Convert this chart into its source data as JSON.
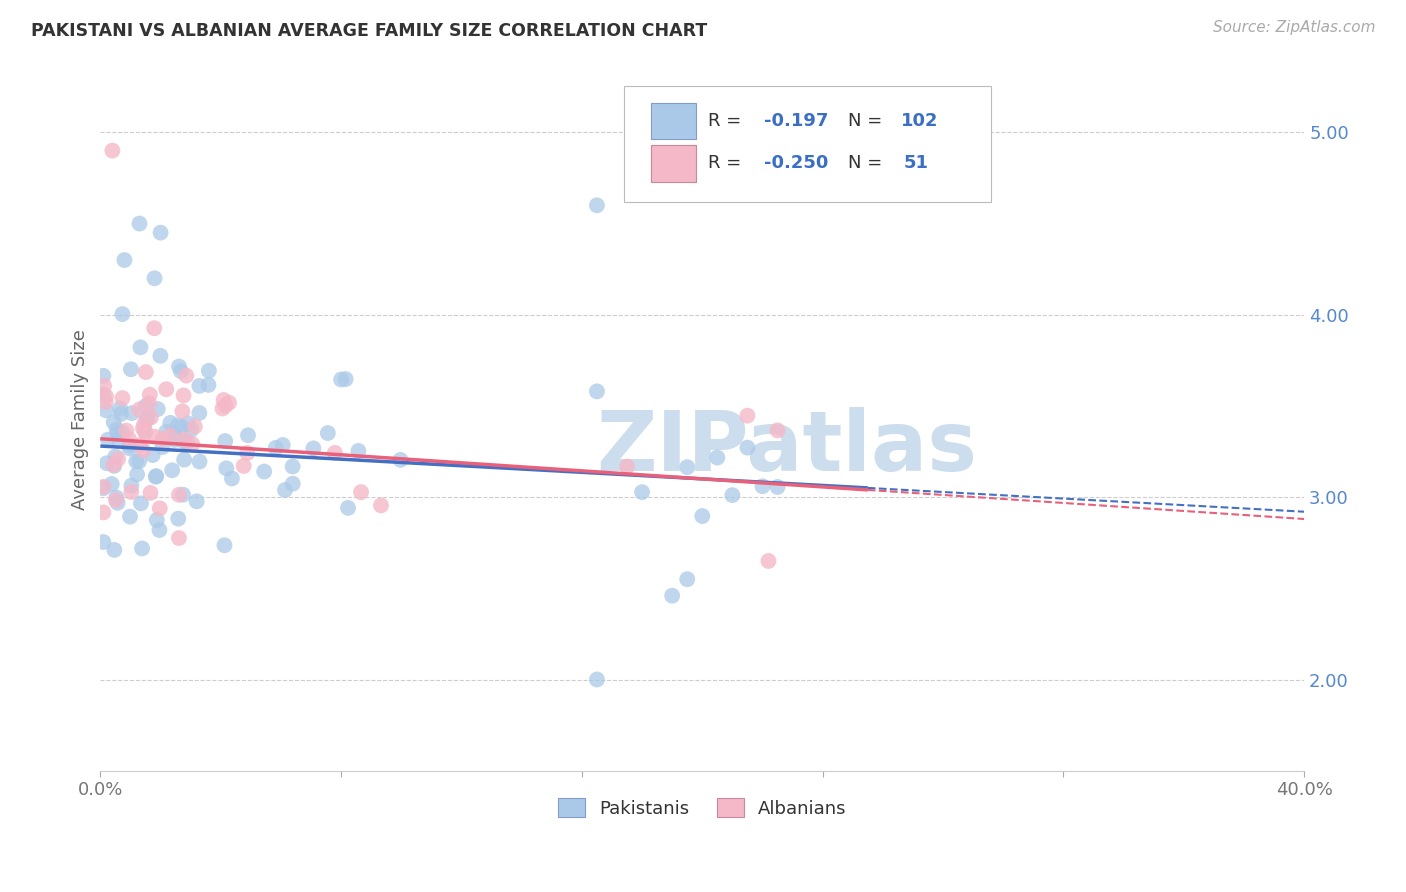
{
  "title": "PAKISTANI VS ALBANIAN AVERAGE FAMILY SIZE CORRELATION CHART",
  "source": "Source: ZipAtlas.com",
  "ylabel": "Average Family Size",
  "xlim": [
    0.0,
    0.4
  ],
  "ylim": [
    1.5,
    5.35
  ],
  "yticks_right": [
    2.0,
    3.0,
    4.0,
    5.0
  ],
  "watermark": "ZIPatlas",
  "pakistani_R": -0.197,
  "pakistani_N": 102,
  "albanian_R": -0.25,
  "albanian_N": 51,
  "blue_scatter_color": "#aac9e8",
  "pink_scatter_color": "#f5b8c8",
  "blue_line_color": "#4470c4",
  "pink_line_color": "#e8607a",
  "background_color": "#ffffff",
  "grid_color": "#c8c8c8",
  "title_color": "#333333",
  "legend_text_color": "#333333",
  "legend_value_color": "#3a6fc4",
  "right_axis_color": "#5588cc",
  "watermark_color": "#ccdded"
}
